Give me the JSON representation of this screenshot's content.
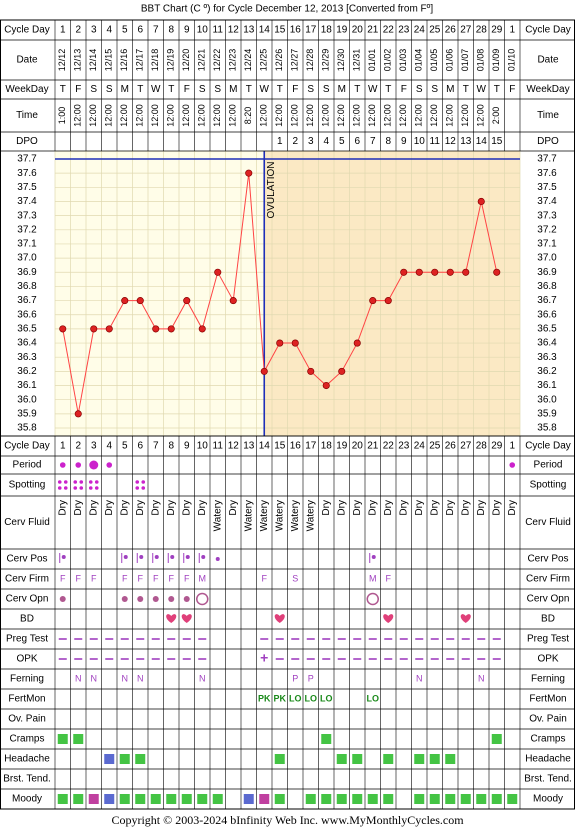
{
  "title": "BBT Chart (C º) for Cycle December 12, 2013  [Converted from Fº]",
  "footer": "Copyright © 2003-2024 bInfinity Web Inc.    www.MyMonthlyCycles.com",
  "ovulation_label": "OVULATION",
  "colors": {
    "preOvulationBg": "#fffde8",
    "postOvulationBg": "#fbe9c4",
    "grid": "#e0d9b0",
    "line": "#ff4444",
    "point": "#dd2222",
    "ovulationLine": "#1f2fb8",
    "purple": "#a040c0",
    "green": "#44c444",
    "darkGreen": "#1a8a1a",
    "blue": "#5b6ad0",
    "magenta": "#c040a0",
    "heart": "#e0407a"
  },
  "row_labels": {
    "cycle_day": "Cycle Day",
    "date": "Date",
    "weekday": "WeekDay",
    "time": "Time",
    "dpo": "DPO",
    "period": "Period",
    "spotting": "Spotting",
    "cerv_fluid": "Cerv Fluid",
    "cerv_pos": "Cerv Pos",
    "cerv_firm": "Cerv Firm",
    "cerv_opn": "Cerv Opn",
    "bd": "BD",
    "preg_test": "Preg Test",
    "opk": "OPK",
    "ferning": "Ferning",
    "fertmon": "FertMon",
    "ov_pain": "Ov. Pain",
    "cramps": "Cramps",
    "headache": "Headache",
    "brst_tend": "Brst. Tend.",
    "moody": "Moody"
  },
  "chart_data": {
    "type": "line",
    "title": "BBT Chart (C º) for Cycle December 12, 2013  [Converted from Fº]",
    "ylim": [
      35.8,
      37.7
    ],
    "y_ticks": [
      "37.7",
      "37.6",
      "37.5",
      "37.4",
      "37.3",
      "37.2",
      "37.1",
      "37.0",
      "36.9",
      "36.8",
      "36.7",
      "36.6",
      "36.5",
      "36.4",
      "36.3",
      "36.2",
      "36.1",
      "36.0",
      "35.9",
      "35.8"
    ],
    "cycle_days": [
      "1",
      "2",
      "3",
      "4",
      "5",
      "6",
      "7",
      "8",
      "9",
      "10",
      "11",
      "12",
      "13",
      "14",
      "15",
      "16",
      "17",
      "18",
      "19",
      "20",
      "21",
      "22",
      "23",
      "24",
      "25",
      "26",
      "27",
      "28",
      "29",
      "1"
    ],
    "dates": [
      "12/12",
      "12/13",
      "12/14",
      "12/15",
      "12/16",
      "12/17",
      "12/18",
      "12/19",
      "12/20",
      "12/21",
      "12/22",
      "12/23",
      "12/24",
      "12/25",
      "12/26",
      "12/27",
      "12/28",
      "12/29",
      "12/30",
      "12/31",
      "01/01",
      "01/02",
      "01/03",
      "01/04",
      "01/05",
      "01/06",
      "01/07",
      "01/08",
      "01/09",
      "01/10"
    ],
    "weekdays": [
      "T",
      "F",
      "S",
      "S",
      "M",
      "T",
      "W",
      "T",
      "F",
      "S",
      "S",
      "M",
      "T",
      "W",
      "T",
      "F",
      "S",
      "S",
      "M",
      "T",
      "W",
      "T",
      "F",
      "S",
      "S",
      "M",
      "T",
      "W",
      "T",
      "F"
    ],
    "times": [
      "1:00",
      "12:00",
      "12:00",
      "12:00",
      "12:00",
      "12:00",
      "12:00",
      "12:00",
      "12:00",
      "12:00",
      "12:00",
      "12:00",
      "8:20",
      "12:00",
      "12:00",
      "12:00",
      "12:00",
      "12:00",
      "12:00",
      "12:00",
      "12:00",
      "12:00",
      "12:00",
      "12:00",
      "12:00",
      "12:00",
      "12:00",
      "12:00",
      "2:00",
      ""
    ],
    "dpo": [
      "",
      "",
      "",
      "",
      "",
      "",
      "",
      "",
      "",
      "",
      "",
      "",
      "",
      "",
      "1",
      "2",
      "3",
      "4",
      "5",
      "6",
      "7",
      "8",
      "9",
      "10",
      "11",
      "12",
      "13",
      "14",
      "15",
      ""
    ],
    "temperatures": [
      36.5,
      35.9,
      36.5,
      36.5,
      36.7,
      36.7,
      36.5,
      36.5,
      36.7,
      36.5,
      36.9,
      36.7,
      37.6,
      36.2,
      36.4,
      36.4,
      36.2,
      36.1,
      36.2,
      36.4,
      36.7,
      36.7,
      36.9,
      36.9,
      36.9,
      36.9,
      36.9,
      37.4,
      36.9,
      null
    ],
    "ovulation_day": 14,
    "rows": {
      "period": [
        "small",
        "small",
        "large",
        "small",
        "",
        "",
        "",
        "",
        "",
        "",
        "",
        "",
        "",
        "",
        "",
        "",
        "",
        "",
        "",
        "",
        "",
        "",
        "",
        "",
        "",
        "",
        "",
        "",
        "",
        "small"
      ],
      "spotting": [
        1,
        1,
        1,
        0,
        0,
        1,
        0,
        0,
        0,
        0,
        0,
        0,
        0,
        0,
        0,
        0,
        0,
        0,
        0,
        0,
        0,
        0,
        0,
        0,
        0,
        0,
        0,
        0,
        0,
        0
      ],
      "cerv_fluid": [
        "Dry",
        "Dry",
        "Dry",
        "Dry",
        "Dry",
        "Dry",
        "Dry",
        "Dry",
        "Dry",
        "Dry",
        "Watery",
        "Dry",
        "Watery",
        "Watery",
        "Watery",
        "Watery",
        "Watery",
        "Dry",
        "Dry",
        "Dry",
        "Dry",
        "Dry",
        "Dry",
        "Dry",
        "Dry",
        "Dry",
        "Dry",
        "Dry",
        "Dry",
        "Dry"
      ],
      "cerv_pos": [
        "low",
        "",
        "",
        "",
        "low",
        "low",
        "low",
        "low",
        "low",
        "low",
        "dot",
        "",
        "",
        "",
        "",
        "",
        "",
        "",
        "",
        "",
        "low",
        "",
        "",
        "",
        "",
        "",
        "",
        "",
        "",
        ""
      ],
      "cerv_firm": [
        "F",
        "F",
        "F",
        "",
        "F",
        "F",
        "F",
        "F",
        "F",
        "M",
        "",
        "",
        "",
        "F",
        "",
        "S",
        "",
        "",
        "",
        "",
        "M",
        "F",
        "",
        "",
        "",
        "",
        "",
        "",
        "",
        ""
      ],
      "cerv_opn": [
        "s",
        "",
        "",
        "",
        "s",
        "s",
        "s",
        "s",
        "s",
        "L",
        "",
        "",
        "",
        "",
        "",
        "",
        "",
        "",
        "",
        "",
        "L",
        "",
        "",
        "",
        "",
        "",
        "",
        "",
        "",
        ""
      ],
      "bd": [
        0,
        0,
        0,
        0,
        0,
        0,
        0,
        1,
        1,
        0,
        0,
        0,
        0,
        0,
        1,
        0,
        0,
        0,
        0,
        0,
        0,
        1,
        0,
        0,
        0,
        0,
        1,
        0,
        0,
        0
      ],
      "preg_test": [
        1,
        1,
        1,
        1,
        1,
        1,
        1,
        1,
        1,
        1,
        0,
        0,
        0,
        1,
        1,
        1,
        1,
        1,
        1,
        1,
        1,
        1,
        1,
        1,
        1,
        1,
        1,
        1,
        1,
        0
      ],
      "opk": [
        "-",
        "-",
        "-",
        "-",
        "-",
        "-",
        "-",
        "-",
        "-",
        "-",
        "",
        "",
        "",
        "+",
        "-",
        "-",
        "-",
        "-",
        "-",
        "-",
        "-",
        "-",
        "-",
        "-",
        "-",
        "-",
        "-",
        "-",
        "-",
        ""
      ],
      "ferning": [
        "",
        "N",
        "N",
        "",
        "N",
        "N",
        "",
        "",
        "",
        "N",
        "",
        "",
        "",
        "",
        "",
        "P",
        "P",
        "",
        "",
        "",
        "",
        "",
        "",
        "N",
        "",
        "",
        "",
        "N",
        "",
        ""
      ],
      "fertmon": [
        "",
        "",
        "",
        "",
        "",
        "",
        "",
        "",
        "",
        "",
        "",
        "",
        "",
        "PK",
        "PK",
        "LO",
        "LO",
        "LO",
        "",
        "",
        "LO",
        "",
        "",
        "",
        "",
        "",
        "",
        "",
        "",
        ""
      ],
      "ov_pain": [
        0,
        0,
        0,
        0,
        0,
        0,
        0,
        0,
        0,
        0,
        0,
        0,
        0,
        0,
        0,
        0,
        0,
        0,
        0,
        0,
        0,
        0,
        0,
        0,
        0,
        0,
        0,
        0,
        0,
        0
      ],
      "cramps": [
        "g",
        "g",
        "",
        "",
        "",
        "",
        "",
        "",
        "",
        "",
        "",
        "",
        "",
        "",
        "",
        "",
        "",
        "g",
        "",
        "",
        "",
        "",
        "",
        "",
        "",
        "",
        "",
        "",
        "g",
        ""
      ],
      "headache": [
        "",
        "",
        "",
        "b",
        "g",
        "g",
        "",
        "",
        "",
        "",
        "",
        "",
        "",
        "",
        "g",
        "",
        "",
        "",
        "g",
        "g",
        "",
        "g",
        "",
        "g",
        "g",
        "g",
        "",
        "",
        "",
        ""
      ],
      "brst_tend": [
        0,
        0,
        0,
        0,
        0,
        0,
        0,
        0,
        0,
        0,
        0,
        0,
        0,
        0,
        0,
        0,
        0,
        0,
        0,
        0,
        0,
        0,
        0,
        0,
        0,
        0,
        0,
        0,
        0,
        0
      ],
      "moody": [
        "g",
        "g",
        "m",
        "b",
        "g",
        "g",
        "g",
        "g",
        "g",
        "g",
        "g",
        "",
        "b",
        "m",
        "g",
        "",
        "g",
        "g",
        "g",
        "g",
        "g",
        "g",
        "",
        "g",
        "g",
        "g",
        "g",
        "g",
        "g",
        "g"
      ]
    }
  }
}
